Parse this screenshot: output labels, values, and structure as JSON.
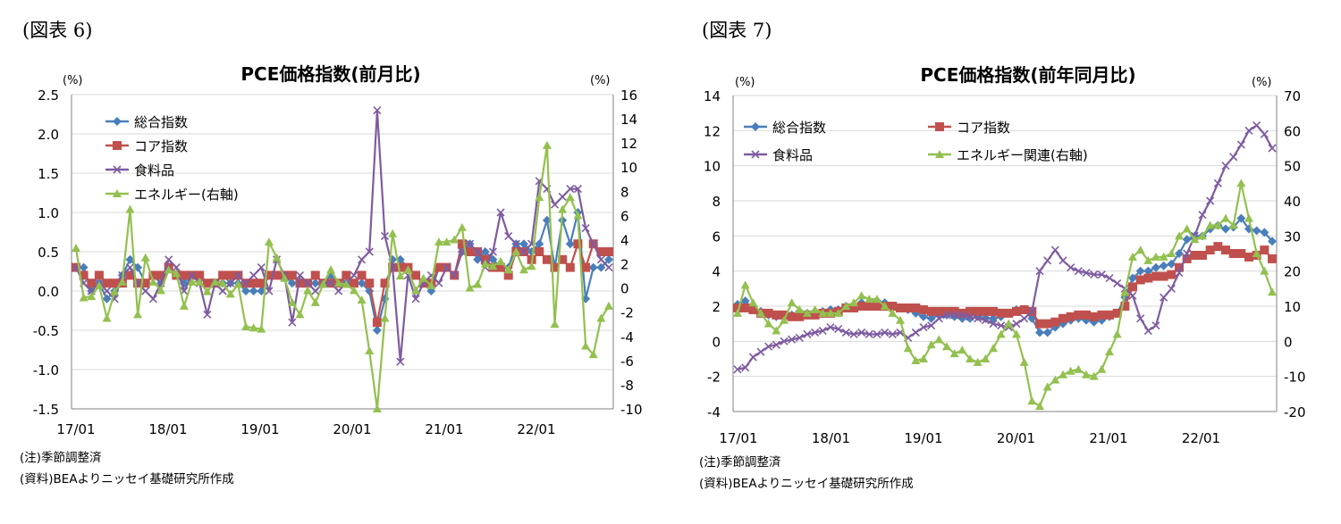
{
  "figures": [
    {
      "label": "(図表 6)",
      "note1": "(注)季節調整済",
      "note2": "(資料)BEAよりニッセイ基礎研究所作成"
    },
    {
      "label": "(図表 7)",
      "note1": "(注)季節調整済",
      "note2": "(資料)BEAよりニッセイ基礎研究所作成"
    }
  ],
  "colors": {
    "total": "#4a7ebb",
    "core": "#c0504d",
    "food": "#7e5ca0",
    "energy": "#93c04f"
  },
  "chart_data": [
    {
      "type": "line",
      "title": "PCE価格指数(前月比)",
      "ylabel_left": "(%)",
      "ylabel_right": "(%)",
      "ylim": [
        -1.5,
        2.5
      ],
      "yticks": [
        "2.5",
        "2.0",
        "1.5",
        "1.0",
        "0.5",
        "0.0",
        "-0.5",
        "-1.0",
        "-1.5"
      ],
      "ylim_right": [
        -10,
        16
      ],
      "yticks_right": [
        "16",
        "14",
        "12",
        "10",
        "8",
        "6",
        "4",
        "2",
        "0",
        "-2",
        "-4",
        "-6",
        "-8",
        "-10"
      ],
      "xticks": [
        "17/01",
        "18/01",
        "19/01",
        "20/01",
        "21/01",
        "22/01"
      ],
      "legend_position": "top-left",
      "series": [
        {
          "name": "総合指数",
          "axis": "left",
          "key": "total",
          "values": [
            0.3,
            0.3,
            0.0,
            0.1,
            -0.1,
            0.0,
            0.2,
            0.4,
            0.3,
            0.1,
            0.2,
            0.1,
            0.3,
            0.2,
            0.1,
            0.2,
            0.2,
            0.1,
            0.1,
            0.1,
            0.1,
            0.1,
            0.0,
            0.0,
            0.0,
            0.2,
            0.2,
            0.2,
            0.1,
            0.1,
            0.1,
            0.1,
            0.1,
            0.2,
            0.1,
            0.1,
            0.1,
            0.1,
            0.0,
            -0.5,
            -0.1,
            0.4,
            0.4,
            0.3,
            0.2,
            0.1,
            0.0,
            0.3,
            0.3,
            0.2,
            0.5,
            0.6,
            0.4,
            0.5,
            0.4,
            0.3,
            0.3,
            0.6,
            0.6,
            0.5,
            0.6,
            0.9,
            0.3,
            0.9,
            0.6,
            1.0,
            -0.1,
            0.3,
            0.3,
            0.4
          ]
        },
        {
          "name": "コア指数",
          "axis": "left",
          "key": "core",
          "values": [
            0.3,
            0.2,
            0.1,
            0.2,
            0.1,
            0.1,
            0.1,
            0.2,
            0.1,
            0.1,
            0.2,
            0.2,
            0.3,
            0.2,
            0.2,
            0.2,
            0.2,
            0.1,
            0.1,
            0.2,
            0.2,
            0.2,
            0.1,
            0.1,
            0.1,
            0.2,
            0.2,
            0.2,
            0.2,
            0.1,
            0.1,
            0.2,
            0.1,
            0.1,
            0.1,
            0.2,
            0.1,
            0.2,
            0.1,
            -0.4,
            0.1,
            0.3,
            0.3,
            0.3,
            0.2,
            0.1,
            0.1,
            0.3,
            0.3,
            0.2,
            0.6,
            0.5,
            0.5,
            0.4,
            0.3,
            0.3,
            0.2,
            0.5,
            0.5,
            0.4,
            0.5,
            0.4,
            0.3,
            0.4,
            0.3,
            0.6,
            0.3,
            0.6,
            0.5,
            0.5
          ]
        },
        {
          "name": "食料品",
          "axis": "left",
          "key": "food",
          "values": [
            0.3,
            0.1,
            0.0,
            0.1,
            0.0,
            -0.1,
            0.2,
            0.3,
            0.1,
            0.0,
            -0.1,
            0.1,
            0.4,
            0.3,
            0.0,
            0.2,
            0.1,
            -0.3,
            0.1,
            0.0,
            0.1,
            0.2,
            0.1,
            0.2,
            0.3,
            0.0,
            0.4,
            0.2,
            -0.4,
            0.2,
            0.1,
            0.0,
            0.1,
            0.1,
            0.0,
            0.1,
            0.2,
            0.4,
            0.5,
            2.3,
            0.7,
            0.3,
            -0.9,
            0.2,
            -0.1,
            0.1,
            0.2,
            0.1,
            0.3,
            0.2,
            0.5,
            0.6,
            0.5,
            0.3,
            0.5,
            1.0,
            0.7,
            0.6,
            0.5,
            0.6,
            1.4,
            1.3,
            1.1,
            1.2,
            1.3,
            1.3,
            0.8,
            0.6,
            0.4,
            0.3
          ]
        },
        {
          "name": "エネルギー(右軸)",
          "axis": "right",
          "key": "energy",
          "values": [
            3.3,
            -0.8,
            -0.7,
            0.2,
            -2.5,
            -0.3,
            0.5,
            6.5,
            -2.2,
            2.5,
            0.5,
            -0.2,
            1.5,
            1.2,
            -1.5,
            0.5,
            0.5,
            -0.3,
            0.5,
            0.4,
            -0.5,
            0.3,
            -3.2,
            -3.3,
            -3.4,
            3.8,
            2.5,
            0.8,
            -1.2,
            -2.2,
            -0.2,
            -1.2,
            0.3,
            1.5,
            0.4,
            0.3,
            -0.2,
            -1.0,
            -5.2,
            -10.0,
            -2.5,
            4.5,
            1.0,
            1.5,
            -0.2,
            0.8,
            0.2,
            3.8,
            3.8,
            4.0,
            5.0,
            0.0,
            0.3,
            2.0,
            1.8,
            2.2,
            1.5,
            3.0,
            1.5,
            1.8,
            7.5,
            11.8,
            -3.0,
            6.5,
            7.5,
            6.0,
            -4.8,
            -5.5,
            -2.5,
            -1.5
          ]
        }
      ]
    },
    {
      "type": "line",
      "title": "PCE価格指数(前年同月比)",
      "ylabel_left": "(%)",
      "ylabel_right": "(%)",
      "ylim": [
        -4,
        14
      ],
      "yticks": [
        "14",
        "12",
        "10",
        "8",
        "6",
        "4",
        "2",
        "0",
        "-2",
        "-4"
      ],
      "ylim_right": [
        -20,
        70
      ],
      "yticks_right": [
        "70",
        "60",
        "50",
        "40",
        "30",
        "20",
        "10",
        "0",
        "-10",
        "-20"
      ],
      "xticks": [
        "17/01",
        "18/01",
        "19/01",
        "20/01",
        "21/01",
        "22/01"
      ],
      "legend_position": "top-left",
      "series": [
        {
          "name": "総合指数",
          "axis": "left",
          "key": "total",
          "values": [
            2.1,
            2.3,
            1.8,
            1.7,
            1.5,
            1.4,
            1.4,
            1.5,
            1.7,
            1.6,
            1.7,
            1.7,
            1.8,
            1.8,
            2.0,
            2.0,
            2.2,
            2.2,
            2.3,
            2.2,
            2.0,
            1.9,
            1.8,
            1.6,
            1.4,
            1.3,
            1.5,
            1.5,
            1.4,
            1.3,
            1.3,
            1.4,
            1.3,
            1.3,
            1.4,
            1.6,
            1.8,
            1.8,
            1.3,
            0.5,
            0.5,
            0.8,
            1.0,
            1.2,
            1.3,
            1.2,
            1.1,
            1.2,
            1.4,
            1.6,
            2.5,
            3.6,
            4.0,
            4.0,
            4.2,
            4.3,
            4.4,
            5.0,
            5.8,
            6.0,
            6.0,
            6.4,
            6.6,
            6.4,
            6.5,
            7.0,
            6.4,
            6.3,
            6.2,
            5.7
          ]
        },
        {
          "name": "コア指数",
          "axis": "left",
          "key": "core",
          "values": [
            1.9,
            1.9,
            1.8,
            1.6,
            1.6,
            1.5,
            1.5,
            1.4,
            1.4,
            1.5,
            1.5,
            1.6,
            1.6,
            1.7,
            1.9,
            1.9,
            2.0,
            2.0,
            2.0,
            2.0,
            2.0,
            1.9,
            1.9,
            1.9,
            1.8,
            1.7,
            1.7,
            1.7,
            1.7,
            1.6,
            1.7,
            1.7,
            1.7,
            1.7,
            1.6,
            1.6,
            1.7,
            1.8,
            1.7,
            1.0,
            1.0,
            1.1,
            1.3,
            1.4,
            1.5,
            1.5,
            1.4,
            1.5,
            1.5,
            1.6,
            2.0,
            3.1,
            3.5,
            3.6,
            3.7,
            3.7,
            3.8,
            4.2,
            4.7,
            4.9,
            4.9,
            5.2,
            5.4,
            5.2,
            5.0,
            5.0,
            4.8,
            4.9,
            5.2,
            4.7
          ]
        },
        {
          "name": "食料品",
          "axis": "left",
          "key": "food",
          "values": [
            -1.6,
            -1.5,
            -0.9,
            -0.6,
            -0.3,
            -0.2,
            0.0,
            0.1,
            0.2,
            0.4,
            0.5,
            0.6,
            0.8,
            0.7,
            0.5,
            0.4,
            0.5,
            0.4,
            0.4,
            0.5,
            0.4,
            0.5,
            0.2,
            0.5,
            0.8,
            0.9,
            1.3,
            1.5,
            1.5,
            1.5,
            1.4,
            1.3,
            1.2,
            1.0,
            0.9,
            0.8,
            1.0,
            1.3,
            1.7,
            4.0,
            4.6,
            5.2,
            4.6,
            4.2,
            4.0,
            3.9,
            3.8,
            3.8,
            3.6,
            3.3,
            3.0,
            2.6,
            1.3,
            0.6,
            0.9,
            2.5,
            3.0,
            3.9,
            5.0,
            6.0,
            7.2,
            8.0,
            9.0,
            10.0,
            10.5,
            11.2,
            12.0,
            12.3,
            11.8,
            11.0
          ]
        },
        {
          "name": "エネルギー関連(右軸)",
          "axis": "right",
          "key": "energy",
          "values": [
            8.0,
            16.0,
            11.0,
            8.0,
            5.0,
            3.0,
            6.0,
            11.0,
            9.0,
            8.0,
            9.0,
            8.0,
            8.0,
            8.0,
            10.0,
            11.0,
            13.0,
            12.0,
            12.0,
            10.0,
            8.0,
            6.0,
            -2.0,
            -5.5,
            -5.0,
            -1.0,
            0.5,
            -1.5,
            -3.5,
            -2.5,
            -5.0,
            -6.0,
            -5.0,
            -2.0,
            2.0,
            5.0,
            2.0,
            -6.0,
            -17.0,
            -18.5,
            -13.0,
            -11.0,
            -9.5,
            -8.5,
            -8.0,
            -9.5,
            -10.0,
            -8.0,
            -3.0,
            2.0,
            14.0,
            24.0,
            26.0,
            23.0,
            24.0,
            24.0,
            25.0,
            30.0,
            32.0,
            29.0,
            30.0,
            33.0,
            33.0,
            35.0,
            33.0,
            45.0,
            35.0,
            25.0,
            20.0,
            14.0
          ]
        }
      ]
    }
  ]
}
